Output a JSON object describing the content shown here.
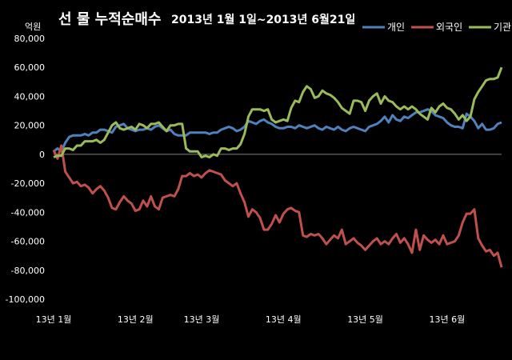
{
  "chart_data": {
    "type": "line",
    "title_main": "선 물 누적순매수",
    "title_sub": "2013년 1월 1일~2013년 6월21일",
    "unit_label": "억원",
    "ylim": [
      -100000,
      80000
    ],
    "y_ticks": [
      80000,
      60000,
      40000,
      20000,
      0,
      -20000,
      -40000,
      -60000,
      -80000,
      -100000
    ],
    "y_tick_labels": [
      "80,000",
      "60,000",
      "40,000",
      "20,000",
      "0",
      "-20,000",
      "-40,000",
      "-60,000",
      "-80,000",
      "-100,000"
    ],
    "x_tick_labels": [
      "13년 1월",
      "13년 2월",
      "13년 3월",
      "13년 4월",
      "13년 5월",
      "13년 6월"
    ],
    "x_tick_positions": [
      0,
      21,
      38,
      59,
      80,
      101
    ],
    "n_points": 116,
    "grid": "horizontal-zero-line",
    "legend_position": "top-right",
    "series": [
      {
        "name": "개인",
        "color": "#4f81bd",
        "values": [
          2000,
          4000,
          2000,
          8000,
          12000,
          13000,
          13000,
          13000,
          14000,
          13000,
          15000,
          15000,
          17000,
          17000,
          16000,
          15000,
          19000,
          20000,
          21000,
          18000,
          17000,
          16000,
          17000,
          17000,
          18000,
          17000,
          19000,
          20000,
          18000,
          16000,
          17000,
          14000,
          13000,
          13000,
          13000,
          15000,
          15000,
          15000,
          15000,
          15000,
          14000,
          15000,
          15000,
          17000,
          18000,
          19000,
          18000,
          16000,
          17000,
          19000,
          23000,
          22000,
          21000,
          23000,
          24000,
          22000,
          21000,
          19000,
          18000,
          18000,
          19000,
          19000,
          18000,
          20000,
          19000,
          18000,
          19000,
          20000,
          18000,
          17000,
          19000,
          18000,
          17000,
          19000,
          17000,
          16000,
          18000,
          19000,
          18000,
          17000,
          16000,
          19000,
          20000,
          21000,
          23000,
          26000,
          22000,
          27000,
          24000,
          23000,
          26000,
          25000,
          27000,
          29000,
          29000,
          30000,
          31000,
          30000,
          27000,
          26000,
          25000,
          22000,
          20000,
          19000,
          19000,
          18000,
          28000,
          26000,
          23000,
          18000,
          21000,
          17000,
          17000,
          18000,
          21000,
          22000
        ]
      },
      {
        "name": "외국인",
        "color": "#c0504d",
        "values": [
          3000,
          -3000,
          6000,
          -12000,
          -16000,
          -20000,
          -19000,
          -22000,
          -21000,
          -23000,
          -27000,
          -24000,
          -22000,
          -25000,
          -30000,
          -37000,
          -38000,
          -33000,
          -29000,
          -32000,
          -34000,
          -39000,
          -38000,
          -32000,
          -36000,
          -29000,
          -36000,
          -38000,
          -30000,
          -29000,
          -28000,
          -29000,
          -24000,
          -15000,
          -15000,
          -13000,
          -15000,
          -14000,
          -16000,
          -13000,
          -11000,
          -12000,
          -13000,
          -14000,
          -18000,
          -20000,
          -22000,
          -20000,
          -27000,
          -33000,
          -43000,
          -38000,
          -40000,
          -44000,
          -52000,
          -52000,
          -48000,
          -42000,
          -47000,
          -41000,
          -38000,
          -37000,
          -39000,
          -40000,
          -56000,
          -57000,
          -55000,
          -56000,
          -55000,
          -58000,
          -62000,
          -59000,
          -56000,
          -58000,
          -52000,
          -62000,
          -60000,
          -58000,
          -61000,
          -63000,
          -66000,
          -63000,
          -60000,
          -58000,
          -62000,
          -60000,
          -62000,
          -58000,
          -55000,
          -61000,
          -58000,
          -62000,
          -68000,
          -52000,
          -66000,
          -56000,
          -59000,
          -61000,
          -59000,
          -62000,
          -56000,
          -62000,
          -61000,
          -60000,
          -56000,
          -47000,
          -41000,
          -41000,
          -38000,
          -58000,
          -63000,
          -67000,
          -66000,
          -70000,
          -68000,
          -78000
        ]
      },
      {
        "name": "기관",
        "color": "#9bbb59",
        "values": [
          -2000,
          -1000,
          -1000,
          4000,
          4000,
          3000,
          6000,
          6000,
          9000,
          9000,
          9000,
          10000,
          8000,
          10000,
          15000,
          20000,
          22000,
          18000,
          17000,
          18000,
          19000,
          17000,
          21000,
          20000,
          18000,
          21000,
          21000,
          22000,
          19000,
          16000,
          20000,
          20000,
          21000,
          21000,
          4000,
          2000,
          2000,
          2000,
          -2000,
          -1000,
          -2000,
          0,
          -1000,
          4000,
          4000,
          3000,
          4000,
          4000,
          7000,
          14000,
          26000,
          31000,
          31000,
          31000,
          30000,
          31000,
          24000,
          22000,
          23000,
          24000,
          23000,
          32000,
          37000,
          36000,
          43000,
          47000,
          45000,
          39000,
          40000,
          44000,
          42000,
          41000,
          39000,
          36000,
          32000,
          30000,
          28000,
          37000,
          37000,
          36000,
          30000,
          37000,
          40000,
          42000,
          35000,
          40000,
          37000,
          36000,
          33000,
          31000,
          33000,
          31000,
          33000,
          31000,
          28000,
          26000,
          24000,
          32000,
          29000,
          33000,
          35000,
          32000,
          31000,
          28000,
          24000,
          27000,
          23000,
          26000,
          38000,
          43000,
          47000,
          51000,
          52000,
          52000,
          53000,
          60000
        ]
      }
    ]
  }
}
